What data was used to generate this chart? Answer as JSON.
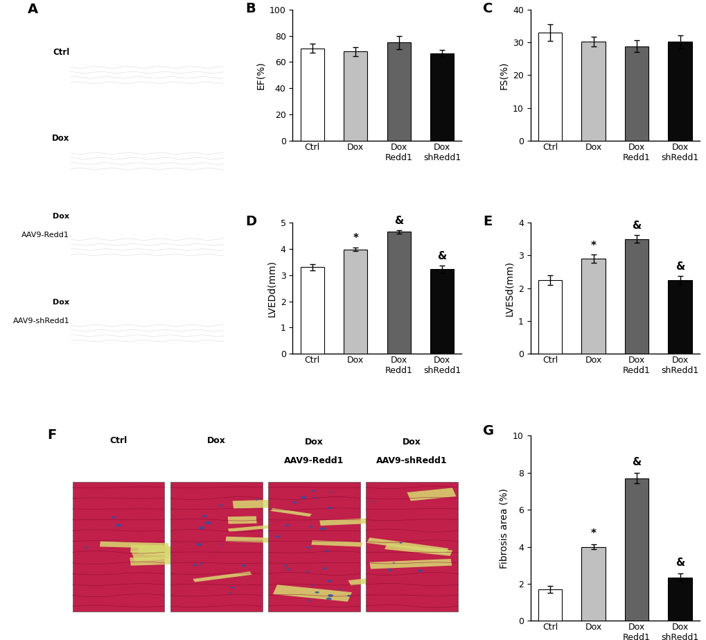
{
  "categories": [
    "Ctrl",
    "Dox",
    "Dox\nRedd1",
    "Dox\nshRedd1"
  ],
  "bar_colors": [
    "#ffffff",
    "#c0c0c0",
    "#636363",
    "#0a0a0a"
  ],
  "bar_edgecolor": "#000000",
  "bar_width": 0.55,
  "B_values": [
    70.5,
    68.0,
    75.0,
    66.5
  ],
  "B_errors": [
    3.5,
    3.5,
    5.0,
    2.5
  ],
  "B_ylabel": "EF(%)",
  "B_ylim": [
    0,
    100
  ],
  "B_yticks": [
    0,
    20,
    40,
    60,
    80,
    100
  ],
  "B_label": "B",
  "C_values": [
    33.0,
    30.2,
    28.8,
    30.2
  ],
  "C_errors": [
    2.5,
    1.5,
    1.8,
    2.0
  ],
  "C_ylabel": "FS(%)",
  "C_ylim": [
    0,
    40
  ],
  "C_yticks": [
    0,
    10,
    20,
    30,
    40
  ],
  "C_label": "C",
  "D_values": [
    3.3,
    3.98,
    4.65,
    3.22
  ],
  "D_errors": [
    0.12,
    0.07,
    0.07,
    0.15
  ],
  "D_ylabel": "LVEDd(mm)",
  "D_ylim": [
    0,
    5
  ],
  "D_yticks": [
    0,
    1,
    2,
    3,
    4,
    5
  ],
  "D_label": "D",
  "D_stars": [
    "",
    "*",
    "&",
    "&"
  ],
  "E_values": [
    2.25,
    2.9,
    3.5,
    2.25
  ],
  "E_errors": [
    0.15,
    0.12,
    0.12,
    0.12
  ],
  "E_ylabel": "LVESd(mm)",
  "E_ylim": [
    0,
    4
  ],
  "E_yticks": [
    0,
    1,
    2,
    3,
    4
  ],
  "E_label": "E",
  "E_stars": [
    "",
    "*",
    "&",
    "&"
  ],
  "G_values": [
    1.7,
    4.0,
    7.7,
    2.35
  ],
  "G_errors": [
    0.18,
    0.12,
    0.28,
    0.22
  ],
  "G_ylabel": "Fibrosis area (%)",
  "G_ylim": [
    0,
    10
  ],
  "G_yticks": [
    0,
    2,
    4,
    6,
    8,
    10
  ],
  "G_label": "G",
  "G_stars": [
    "",
    "*",
    "&",
    "&"
  ],
  "panel_A_label": "A",
  "panel_F_label": "F",
  "echo_labels": [
    "Ctrl",
    "Dox",
    "Dox\nAAV9-Redd1",
    "Dox\nAAV9-shRedd1"
  ],
  "fibrosis_labels": [
    "Ctrl",
    "Dox",
    "Dox\nAAV9-Redd1",
    "Dox\nAAV9-shRedd1"
  ],
  "tick_fontsize": 9,
  "label_fontsize": 10,
  "panel_label_fontsize": 14,
  "star_fontsize": 11
}
